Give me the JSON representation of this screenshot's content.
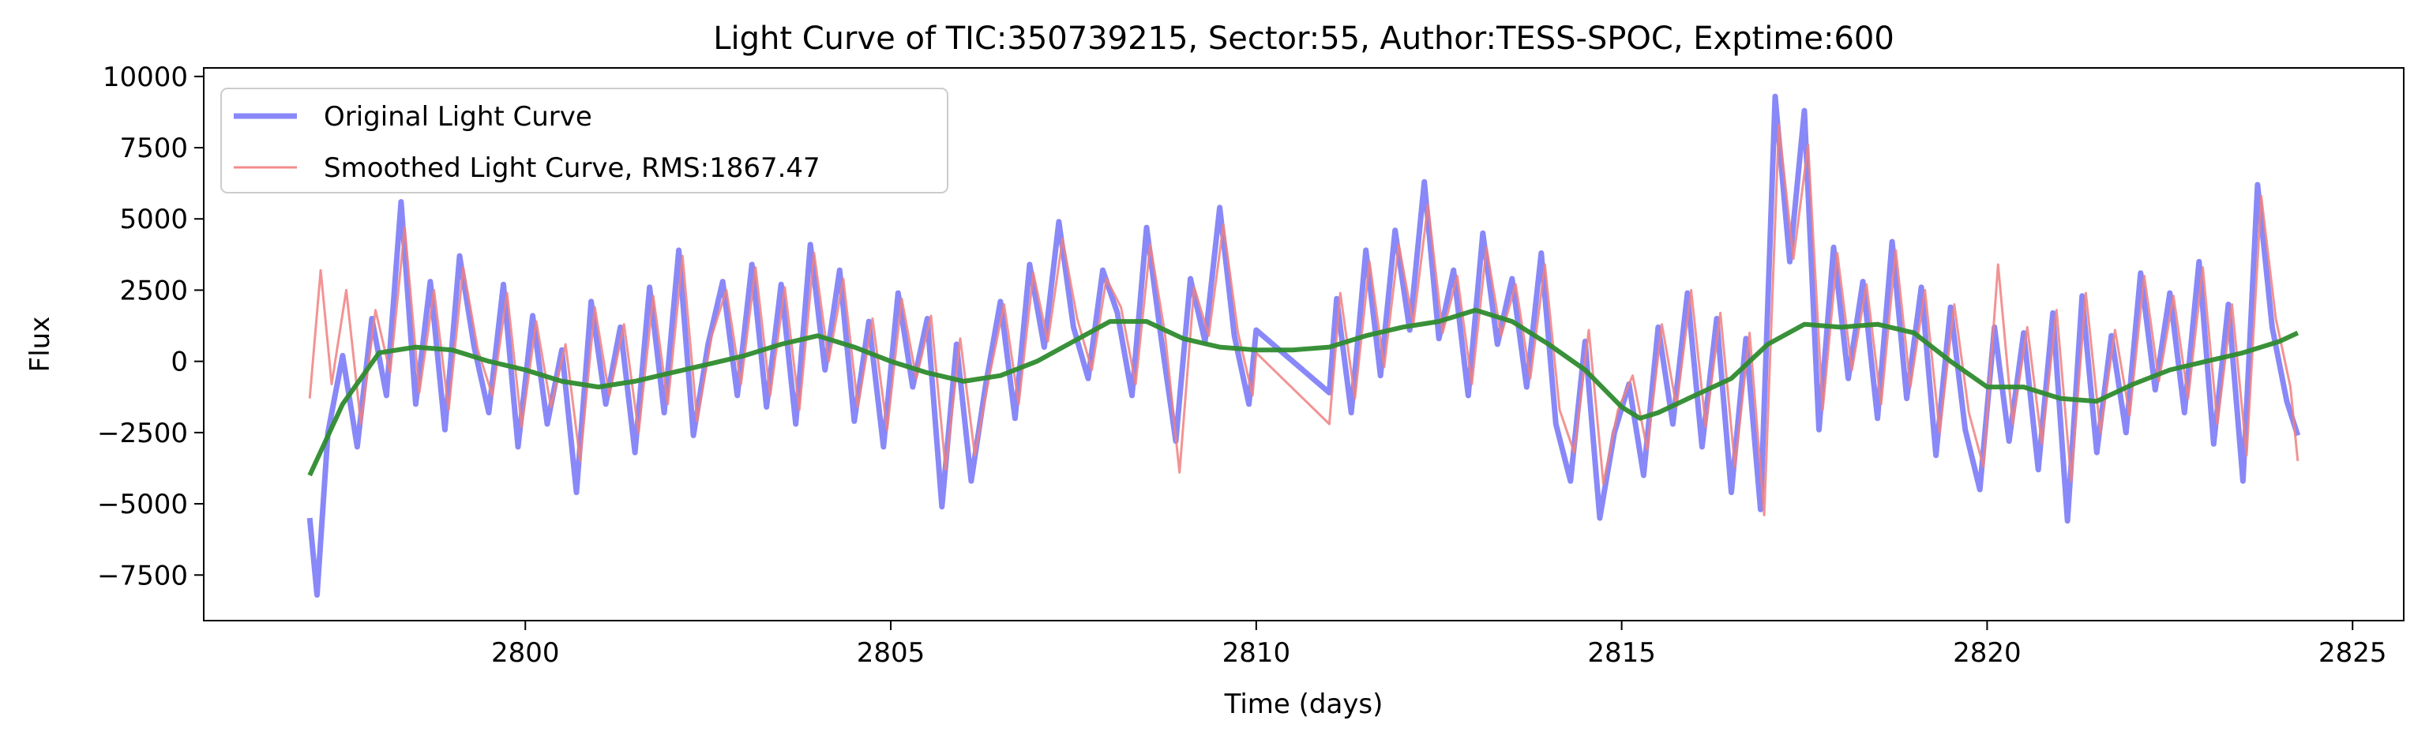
{
  "chart_data": {
    "type": "line",
    "title": "Light Curve of TIC:350739215, Sector:55, Author:TESS-SPOC, Exptime:600",
    "xlabel": "Time (days)",
    "ylabel": "Flux",
    "xlim": [
      2795.6,
      2825.7
    ],
    "ylim": [
      -9100,
      10300
    ],
    "xticks": [
      2800,
      2805,
      2810,
      2815,
      2820,
      2825
    ],
    "yticks": [
      -7500,
      -5000,
      -2500,
      0,
      2500,
      5000,
      7500,
      10000
    ],
    "xtick_labels": [
      "2800",
      "2805",
      "2810",
      "2815",
      "2820",
      "2825"
    ],
    "ytick_labels": [
      "−7500",
      "−5000",
      "−2500",
      "0",
      "2500",
      "5000",
      "7500",
      "10000"
    ],
    "grid": false,
    "legend_position": "top-left",
    "legend": [
      {
        "label": "Original Light Curve",
        "color": "#7b7bf7"
      },
      {
        "label": "Smoothed Light Curve, RMS:1867.47",
        "color": "#f08080"
      }
    ],
    "series": [
      {
        "name": "Original Light Curve",
        "color": "#7b7bf7",
        "x": [
          2797.05,
          2797.15,
          2797.3,
          2797.5,
          2797.7,
          2797.9,
          2798.1,
          2798.3,
          2798.5,
          2798.7,
          2798.9,
          2799.1,
          2799.3,
          2799.5,
          2799.7,
          2799.9,
          2800.1,
          2800.3,
          2800.5,
          2800.7,
          2800.9,
          2801.1,
          2801.3,
          2801.5,
          2801.7,
          2801.9,
          2802.1,
          2802.3,
          2802.5,
          2802.7,
          2802.9,
          2803.1,
          2803.3,
          2803.5,
          2803.7,
          2803.9,
          2804.1,
          2804.3,
          2804.5,
          2804.7,
          2804.9,
          2805.1,
          2805.3,
          2805.5,
          2805.7,
          2805.9,
          2806.1,
          2806.3,
          2806.5,
          2806.7,
          2806.9,
          2807.1,
          2807.3,
          2807.5,
          2807.7,
          2807.9,
          2808.1,
          2808.3,
          2808.5,
          2808.7,
          2808.9,
          2809.1,
          2809.3,
          2809.5,
          2809.7,
          2809.9,
          2810.0,
          2811.0,
          2811.1,
          2811.3,
          2811.5,
          2811.7,
          2811.9,
          2812.1,
          2812.3,
          2812.5,
          2812.7,
          2812.9,
          2813.1,
          2813.3,
          2813.5,
          2813.7,
          2813.9,
          2814.1,
          2814.3,
          2814.5,
          2814.7,
          2814.9,
          2815.1,
          2815.3,
          2815.5,
          2815.7,
          2815.9,
          2816.1,
          2816.3,
          2816.5,
          2816.7,
          2816.9,
          2817.1,
          2817.3,
          2817.5,
          2817.7,
          2817.9,
          2818.1,
          2818.3,
          2818.5,
          2818.7,
          2818.9,
          2819.1,
          2819.3,
          2819.5,
          2819.7,
          2819.9,
          2820.1,
          2820.3,
          2820.5,
          2820.7,
          2820.9,
          2821.1,
          2821.3,
          2821.5,
          2821.7,
          2821.9,
          2822.1,
          2822.3,
          2822.5,
          2822.7,
          2822.9,
          2823.1,
          2823.3,
          2823.5,
          2823.7,
          2823.9,
          2824.1,
          2824.25
        ],
        "y": [
          -5500,
          -8200,
          -2500,
          200,
          -3000,
          1500,
          -1200,
          5600,
          -1500,
          2800,
          -2400,
          3700,
          500,
          -1800,
          2700,
          -3000,
          1600,
          -2200,
          400,
          -4600,
          2100,
          -1500,
          1200,
          -3200,
          2600,
          -1800,
          3900,
          -2600,
          600,
          2800,
          -1200,
          3400,
          -1600,
          2700,
          -2200,
          4100,
          -300,
          3200,
          -2100,
          1400,
          -3000,
          2400,
          -900,
          1500,
          -5100,
          600,
          -4200,
          -800,
          2100,
          -2000,
          3400,
          500,
          4900,
          1200,
          -600,
          3200,
          1700,
          -1200,
          4700,
          800,
          -2800,
          2900,
          700,
          5400,
          900,
          -1500,
          1100,
          -1100,
          2200,
          -1800,
          3900,
          -500,
          4600,
          1100,
          6300,
          800,
          3200,
          -1200,
          4500,
          600,
          2900,
          -900,
          3800,
          -2200,
          -4200,
          700,
          -5500,
          -2500,
          -800,
          -4000,
          1200,
          -2200,
          2400,
          -3000,
          1500,
          -4600,
          800,
          -5200,
          9300,
          3500,
          8800,
          -2400,
          4000,
          -600,
          2800,
          -2000,
          4200,
          -1300,
          2600,
          -3300,
          1900,
          -2400,
          -4500,
          1200,
          -2800,
          1000,
          -3800,
          1700,
          -5600,
          2300,
          -3200,
          900,
          -2500,
          3100,
          -1000,
          2400,
          -1800,
          3500,
          -2900,
          2000,
          -4200,
          6200,
          1200,
          -1400,
          -2600
        ]
      },
      {
        "name": "Smoothed Light Curve, RMS:1867.47",
        "color": "#f08080",
        "x": [
          2797.05,
          2797.2,
          2797.35,
          2797.55,
          2797.75,
          2797.95,
          2798.15,
          2798.35,
          2798.55,
          2798.75,
          2798.95,
          2799.15,
          2799.35,
          2799.55,
          2799.75,
          2799.95,
          2800.15,
          2800.35,
          2800.55,
          2800.75,
          2800.95,
          2801.15,
          2801.35,
          2801.55,
          2801.75,
          2801.95,
          2802.15,
          2802.35,
          2802.55,
          2802.75,
          2802.95,
          2803.15,
          2803.35,
          2803.55,
          2803.75,
          2803.95,
          2804.15,
          2804.35,
          2804.55,
          2804.75,
          2804.95,
          2805.15,
          2805.35,
          2805.55,
          2805.75,
          2805.95,
          2806.15,
          2806.35,
          2806.55,
          2806.75,
          2806.95,
          2807.15,
          2807.35,
          2807.55,
          2807.75,
          2807.95,
          2808.15,
          2808.35,
          2808.55,
          2808.75,
          2808.95,
          2809.15,
          2809.35,
          2809.55,
          2809.75,
          2809.95,
          2810.0,
          2811.0,
          2811.15,
          2811.35,
          2811.55,
          2811.75,
          2811.95,
          2812.15,
          2812.35,
          2812.55,
          2812.75,
          2812.95,
          2813.15,
          2813.35,
          2813.55,
          2813.75,
          2813.95,
          2814.15,
          2814.35,
          2814.55,
          2814.75,
          2814.95,
          2815.15,
          2815.35,
          2815.55,
          2815.75,
          2815.95,
          2816.15,
          2816.35,
          2816.55,
          2816.75,
          2816.95,
          2817.15,
          2817.35,
          2817.55,
          2817.75,
          2817.95,
          2818.15,
          2818.35,
          2818.55,
          2818.75,
          2818.95,
          2819.15,
          2819.35,
          2819.55,
          2819.75,
          2819.95,
          2820.15,
          2820.35,
          2820.55,
          2820.75,
          2820.95,
          2821.15,
          2821.35,
          2821.55,
          2821.75,
          2821.95,
          2822.15,
          2822.35,
          2822.55,
          2822.75,
          2822.95,
          2823.15,
          2823.35,
          2823.55,
          2823.75,
          2823.95,
          2824.15,
          2824.25
        ],
        "y": [
          -1300,
          3200,
          -800,
          2500,
          -2200,
          1800,
          -400,
          4700,
          -1100,
          2500,
          -1700,
          3300,
          400,
          -1200,
          2400,
          -2300,
          1400,
          -1600,
          600,
          -3500,
          1900,
          -1200,
          1300,
          -2500,
          2300,
          -1500,
          3700,
          -2100,
          900,
          2500,
          -800,
          3300,
          -1200,
          2600,
          -1700,
          3800,
          0,
          2900,
          -1600,
          1500,
          -2400,
          2200,
          -600,
          1600,
          -3800,
          800,
          -3300,
          -500,
          2000,
          -1500,
          3100,
          700,
          4300,
          1500,
          -300,
          2900,
          1900,
          -800,
          4100,
          1000,
          -3900,
          2600,
          900,
          4800,
          1000,
          -1200,
          300,
          -2200,
          2400,
          -1300,
          3500,
          -200,
          4100,
          1300,
          5500,
          1000,
          3000,
          -800,
          4000,
          900,
          2700,
          -600,
          3400,
          -1700,
          -3200,
          1100,
          -4300,
          -1700,
          -500,
          -3100,
          1300,
          -1600,
          2500,
          -2300,
          1700,
          -3700,
          1000,
          -5400,
          8300,
          3600,
          7600,
          -1700,
          3800,
          -300,
          2700,
          -1500,
          3900,
          -900,
          2500,
          -2500,
          2000,
          -1800,
          -3700,
          3400,
          -2200,
          1200,
          -2900,
          1800,
          -4200,
          2400,
          -2500,
          1100,
          -1900,
          3000,
          -700,
          2300,
          -1300,
          3300,
          -2200,
          2000,
          -3300,
          5800,
          1500,
          -900,
          -3500
        ]
      },
      {
        "name": "",
        "color": "#2e8b2e",
        "x": [
          2797.05,
          2797.5,
          2798.0,
          2798.5,
          2799.0,
          2799.5,
          2800.0,
          2800.5,
          2801.0,
          2801.5,
          2802.0,
          2802.5,
          2803.0,
          2803.5,
          2804.0,
          2804.5,
          2805.0,
          2805.5,
          2806.0,
          2806.5,
          2807.0,
          2807.5,
          2808.0,
          2808.5,
          2809.0,
          2809.5,
          2810.0,
          2810.5,
          2811.0,
          2811.5,
          2812.0,
          2812.5,
          2813.0,
          2813.5,
          2814.0,
          2814.5,
          2815.0,
          2815.25,
          2815.5,
          2816.0,
          2816.5,
          2817.0,
          2817.5,
          2818.0,
          2818.5,
          2819.0,
          2819.5,
          2820.0,
          2820.5,
          2821.0,
          2821.5,
          2822.0,
          2822.5,
          2823.0,
          2823.5,
          2824.0,
          2824.25
        ],
        "y": [
          -4000,
          -1500,
          300,
          500,
          400,
          0,
          -300,
          -700,
          -900,
          -700,
          -400,
          -100,
          200,
          600,
          900,
          500,
          0,
          -400,
          -700,
          -500,
          0,
          700,
          1400,
          1400,
          800,
          500,
          400,
          400,
          500,
          900,
          1200,
          1400,
          1800,
          1400,
          600,
          -300,
          -1600,
          -2000,
          -1800,
          -1200,
          -600,
          600,
          1300,
          1200,
          1300,
          1000,
          0,
          -900,
          -900,
          -1300,
          -1400,
          -800,
          -300,
          0,
          300,
          700,
          1000
        ]
      }
    ]
  }
}
